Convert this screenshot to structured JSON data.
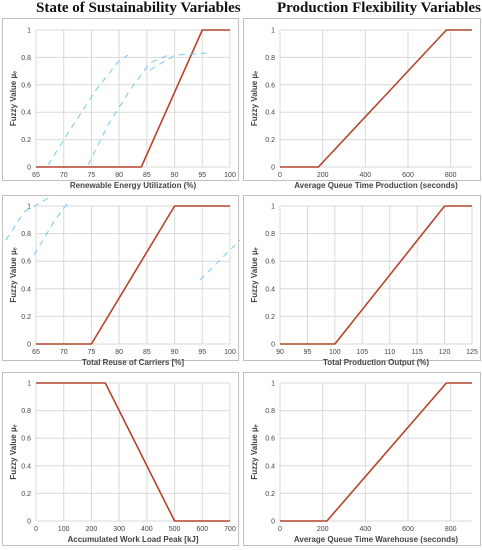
{
  "titles": {
    "left": "State of Sustainability Variables",
    "right": "Production Flexibility Variables"
  },
  "style": {
    "line_color": "#b5442c",
    "grid_color": "#d9d9d9",
    "border_color": "#bfbfbf",
    "artifact_color": "#6ec6f0"
  },
  "chart_data": [
    {
      "type": "line",
      "xlabel": "Renewable Energy Utilization (%)",
      "ylabel": "Fuzzy Value µₑ",
      "xticks": [
        65,
        70,
        75,
        80,
        85,
        90,
        95,
        100
      ],
      "yticks": [
        0,
        0.2,
        0.4,
        0.6,
        0.8,
        1
      ],
      "ytick_labels": [
        "0",
        "0.2",
        "0.4",
        "0.6",
        "0.8",
        "1"
      ],
      "xlim": [
        65,
        100
      ],
      "ylim": [
        0,
        1
      ],
      "series": [
        {
          "x": [
            65,
            84,
            95,
            100
          ],
          "y": [
            0,
            0,
            1,
            1
          ]
        }
      ]
    },
    {
      "type": "line",
      "xlabel": "Average Queue Time Production (seconds)",
      "ylabel": "Fuzzy Value µₑ",
      "xticks": [
        0,
        200,
        400,
        600,
        800
      ],
      "yticks": [
        0,
        0.2,
        0.4,
        0.6,
        0.8,
        1
      ],
      "ytick_labels": [
        "0",
        "0.2",
        "0.4",
        "0.6",
        "0.8",
        "1"
      ],
      "xlim": [
        0,
        900
      ],
      "ylim": [
        0,
        1
      ],
      "series": [
        {
          "x": [
            0,
            180,
            780,
            900
          ],
          "y": [
            0,
            0,
            1,
            1
          ]
        }
      ]
    },
    {
      "type": "line",
      "xlabel": "Total Reuse of Carriers [%]",
      "ylabel": "Fuzzy Value µₑ",
      "xticks": [
        65,
        70,
        75,
        80,
        85,
        90,
        95,
        100
      ],
      "yticks": [
        0,
        0.2,
        0.4,
        0.6,
        0.8,
        1
      ],
      "ytick_labels": [
        "0",
        "0.2",
        "0.4",
        "0.6",
        "0.8",
        "1"
      ],
      "xlim": [
        65,
        100
      ],
      "ylim": [
        0,
        1
      ],
      "series": [
        {
          "x": [
            65,
            75,
            90,
            100
          ],
          "y": [
            0,
            0,
            1,
            1
          ]
        }
      ]
    },
    {
      "type": "line",
      "xlabel": "Total Production Output (%)",
      "ylabel": "Fuzzy Value µₑ",
      "xticks": [
        90,
        95,
        100,
        105,
        110,
        115,
        120,
        125
      ],
      "yticks": [
        0,
        0.2,
        0.4,
        0.6,
        0.8,
        1
      ],
      "ytick_labels": [
        "0",
        "0.2",
        "0.4",
        "0.6",
        "0.8",
        "1"
      ],
      "xlim": [
        90,
        125
      ],
      "ylim": [
        0,
        1
      ],
      "series": [
        {
          "x": [
            90,
            100,
            120,
            125
          ],
          "y": [
            0,
            0,
            1,
            1
          ]
        }
      ]
    },
    {
      "type": "line",
      "xlabel": "Accumulated Work Load Peak [kJ]",
      "ylabel": "Fuzzy Value µₑ",
      "xticks": [
        0,
        100,
        200,
        300,
        400,
        500,
        600,
        700
      ],
      "yticks": [
        0,
        0.2,
        0.4,
        0.6,
        0.8,
        1
      ],
      "ytick_labels": [
        "0",
        "0.2",
        "0.4",
        "0.6",
        "0.8",
        "1"
      ],
      "xlim": [
        0,
        700
      ],
      "ylim": [
        0,
        1
      ],
      "series": [
        {
          "x": [
            0,
            250,
            500,
            700
          ],
          "y": [
            1,
            1,
            0,
            0
          ]
        }
      ]
    },
    {
      "type": "line",
      "xlabel": "Average Queue Time Warehouse (seconds)",
      "ylabel": "Fuzzy Value µₑ",
      "xticks": [
        0,
        200,
        400,
        600,
        800
      ],
      "yticks": [
        0,
        0.2,
        0.4,
        0.6,
        0.8,
        1
      ],
      "ytick_labels": [
        "0",
        "0.2",
        "0.4",
        "0.6",
        "0.8",
        "1"
      ],
      "xlim": [
        0,
        900
      ],
      "ylim": [
        0,
        1
      ],
      "series": [
        {
          "x": [
            0,
            220,
            780,
            900
          ],
          "y": [
            0,
            0,
            1,
            1
          ]
        }
      ]
    }
  ]
}
